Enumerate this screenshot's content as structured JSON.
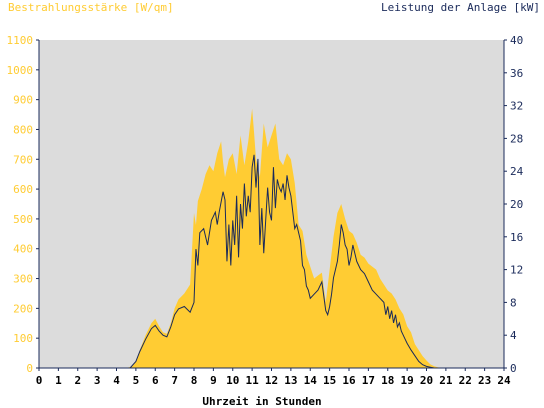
{
  "chart_data": {
    "type": "area",
    "title_left": "Bestrahlungsstärke [W/qm]",
    "title_right": "Leistung der Anlage [kW]",
    "xlabel": "Uhrzeit in Stunden",
    "xlim": [
      0,
      24
    ],
    "x_ticks": [
      "0",
      "1",
      "2",
      "3",
      "4",
      "5",
      "6",
      "7",
      "8",
      "9",
      "10",
      "11",
      "12",
      "13",
      "14",
      "15",
      "16",
      "17",
      "18",
      "19",
      "20",
      "21",
      "22",
      "23",
      "24"
    ],
    "ylim_left": [
      0,
      1100
    ],
    "y_ticks_left": [
      "0",
      "100",
      "200",
      "300",
      "400",
      "500",
      "600",
      "700",
      "800",
      "900",
      "1000",
      "1100"
    ],
    "ylim_right": [
      0,
      40
    ],
    "y_ticks_right": [
      "0",
      "4",
      "8",
      "12",
      "16",
      "20",
      "24",
      "28",
      "32",
      "36",
      "40"
    ],
    "grid": false,
    "colors": {
      "background": "#dcdcdc",
      "irradiance": "#ffcc33",
      "power": "#1a2a5a",
      "left_axis_text": "#ffcc33",
      "right_axis_text": "#1a2a5a"
    },
    "series": [
      {
        "name": "Bestrahlungsstärke [W/qm]",
        "axis": "left",
        "x": [
          0,
          4.5,
          4.8,
          5.0,
          5.2,
          5.5,
          5.8,
          6.0,
          6.2,
          6.4,
          6.6,
          6.8,
          7.0,
          7.2,
          7.5,
          7.8,
          8.0,
          8.1,
          8.2,
          8.4,
          8.6,
          8.8,
          9.0,
          9.2,
          9.4,
          9.5,
          9.6,
          9.8,
          10.0,
          10.2,
          10.4,
          10.6,
          10.8,
          11.0,
          11.1,
          11.2,
          11.4,
          11.6,
          11.8,
          12.0,
          12.2,
          12.4,
          12.6,
          12.8,
          13.0,
          13.2,
          13.4,
          13.6,
          13.8,
          14.0,
          14.2,
          14.4,
          14.6,
          14.8,
          15.0,
          15.2,
          15.4,
          15.6,
          15.8,
          16.0,
          16.2,
          16.4,
          16.6,
          16.8,
          17.0,
          17.2,
          17.4,
          17.6,
          17.8,
          18.0,
          18.2,
          18.4,
          18.6,
          18.8,
          19.0,
          19.2,
          19.4,
          19.6,
          19.8,
          20.0,
          20.2,
          20.4,
          20.6,
          21.0,
          24
        ],
        "values": [
          0,
          0,
          5,
          20,
          60,
          110,
          150,
          165,
          140,
          120,
          115,
          150,
          200,
          230,
          250,
          280,
          520,
          480,
          560,
          600,
          650,
          680,
          660,
          720,
          760,
          690,
          640,
          700,
          720,
          650,
          780,
          680,
          760,
          870,
          790,
          700,
          640,
          820,
          740,
          780,
          820,
          700,
          680,
          720,
          700,
          620,
          480,
          460,
          380,
          340,
          300,
          310,
          320,
          220,
          330,
          440,
          520,
          550,
          500,
          460,
          450,
          420,
          380,
          370,
          350,
          340,
          330,
          300,
          280,
          260,
          250,
          230,
          200,
          180,
          140,
          120,
          80,
          60,
          40,
          25,
          12,
          6,
          2,
          0,
          0
        ]
      },
      {
        "name": "Leistung der Anlage [kW]",
        "axis": "right",
        "x": [
          0,
          4.7,
          5.0,
          5.2,
          5.5,
          5.8,
          6.0,
          6.2,
          6.4,
          6.6,
          6.8,
          7.0,
          7.2,
          7.5,
          7.8,
          8.0,
          8.1,
          8.2,
          8.3,
          8.5,
          8.7,
          8.9,
          9.0,
          9.1,
          9.2,
          9.3,
          9.5,
          9.6,
          9.7,
          9.8,
          9.9,
          10.0,
          10.1,
          10.2,
          10.3,
          10.4,
          10.5,
          10.6,
          10.7,
          10.8,
          10.9,
          11.0,
          11.1,
          11.2,
          11.3,
          11.4,
          11.5,
          11.6,
          11.7,
          11.8,
          11.9,
          12.0,
          12.1,
          12.2,
          12.3,
          12.4,
          12.5,
          12.6,
          12.7,
          12.8,
          12.9,
          13.0,
          13.1,
          13.2,
          13.3,
          13.4,
          13.5,
          13.6,
          13.7,
          13.8,
          13.9,
          14.0,
          14.2,
          14.4,
          14.6,
          14.8,
          14.9,
          15.0,
          15.1,
          15.2,
          15.3,
          15.4,
          15.5,
          15.6,
          15.7,
          15.8,
          15.9,
          16.0,
          16.1,
          16.2,
          16.3,
          16.4,
          16.6,
          16.8,
          17.0,
          17.2,
          17.4,
          17.6,
          17.8,
          17.9,
          18.0,
          18.1,
          18.2,
          18.3,
          18.4,
          18.5,
          18.6,
          18.7,
          18.8,
          18.9,
          19.0,
          19.2,
          19.4,
          19.6,
          19.8,
          20.0,
          20.2,
          20.4,
          20.6,
          21.0,
          24
        ],
        "values": [
          0,
          0,
          0.8,
          2.0,
          3.5,
          4.8,
          5.2,
          4.5,
          4.0,
          3.8,
          5.0,
          6.5,
          7.2,
          7.5,
          6.8,
          8.0,
          14.5,
          12.5,
          16.5,
          17.0,
          15.0,
          18.0,
          18.5,
          19.0,
          17.5,
          19.0,
          21.5,
          20.5,
          13.0,
          17.5,
          12.5,
          18.0,
          15.0,
          21.0,
          13.5,
          20.0,
          17.0,
          22.5,
          18.5,
          21.0,
          19.0,
          24.5,
          26.0,
          22.0,
          25.5,
          15.0,
          19.5,
          14.0,
          18.0,
          22.0,
          19.0,
          18.0,
          24.5,
          19.5,
          23.0,
          22.0,
          21.5,
          22.5,
          20.5,
          23.5,
          22.0,
          21.0,
          19.0,
          17.0,
          17.5,
          16.5,
          15.5,
          12.5,
          12.0,
          10.0,
          9.5,
          8.5,
          9.0,
          9.5,
          10.5,
          7.0,
          6.5,
          7.5,
          9.0,
          11.0,
          12.0,
          13.0,
          15.0,
          17.5,
          16.5,
          15.0,
          14.5,
          12.5,
          13.5,
          15.0,
          14.0,
          13.0,
          12.0,
          11.5,
          10.5,
          9.5,
          9.0,
          8.5,
          8.0,
          6.5,
          7.5,
          6.0,
          7.0,
          5.5,
          6.5,
          5.0,
          5.5,
          4.5,
          4.0,
          3.5,
          3.0,
          2.2,
          1.5,
          0.8,
          0.4,
          0.2,
          0.1,
          0,
          0,
          0,
          0
        ]
      }
    ]
  }
}
